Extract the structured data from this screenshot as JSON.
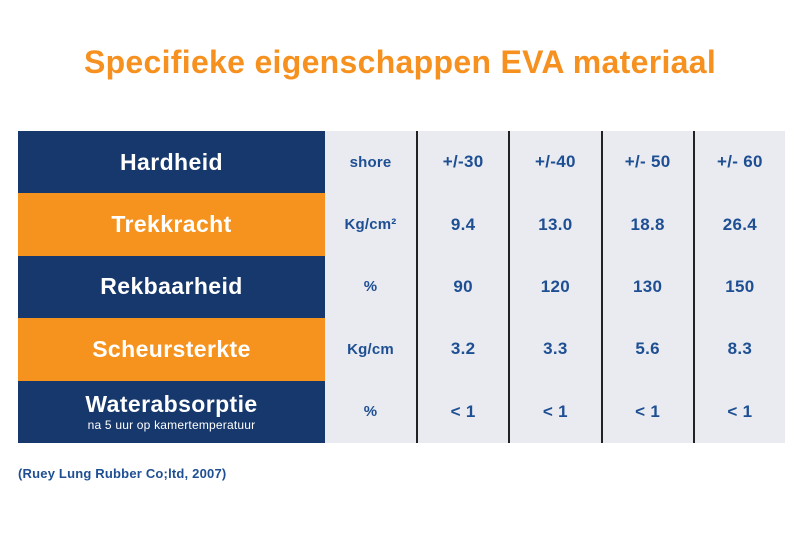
{
  "title": "Specifieke eigenschappen EVA materiaal",
  "source_citation": "(Ruey Lung Rubber Co;ltd, 2007)",
  "colors": {
    "navy": "#17386C",
    "orange": "#F6931F",
    "table_bg": "#E9EBF0",
    "text_blue": "#1E4F93",
    "line": "#222222",
    "title_orange": "#F6911F",
    "white_text": "#FFFFFF"
  },
  "table": {
    "rows": [
      {
        "label": "Hardheid",
        "sublabel": "",
        "label_bg": "navy",
        "unit": "shore",
        "values": [
          "+/-30",
          "+/-40",
          "+/- 50",
          "+/- 60"
        ]
      },
      {
        "label": "Trekkracht",
        "sublabel": "",
        "label_bg": "orange",
        "unit": "Kg/cm²",
        "values": [
          "9.4",
          "13.0",
          "18.8",
          "26.4"
        ]
      },
      {
        "label": "Rekbaarheid",
        "sublabel": "",
        "label_bg": "navy",
        "unit": "%",
        "values": [
          "90",
          "120",
          "130",
          "150"
        ]
      },
      {
        "label": "Scheursterkte",
        "sublabel": "",
        "label_bg": "orange",
        "unit": "Kg/cm",
        "values": [
          "3.2",
          "3.3",
          "5.6",
          "8.3"
        ]
      },
      {
        "label": "Waterabsorptie",
        "sublabel": "na 5 uur op kamertemperatuur",
        "label_bg": "navy",
        "unit": "%",
        "values": [
          "< 1",
          "< 1",
          "< 1",
          "< 1"
        ]
      }
    ]
  },
  "chart_data": {
    "type": "table",
    "title": "Specifieke eigenschappen EVA materiaal",
    "rows": [
      {
        "property": "Hardheid",
        "unit": "shore",
        "values": [
          "+/-30",
          "+/-40",
          "+/- 50",
          "+/- 60"
        ]
      },
      {
        "property": "Trekkracht",
        "unit": "Kg/cm²",
        "values": [
          9.4,
          13.0,
          18.8,
          26.4
        ]
      },
      {
        "property": "Rekbaarheid",
        "unit": "%",
        "values": [
          90,
          120,
          130,
          150
        ]
      },
      {
        "property": "Scheursterkte",
        "unit": "Kg/cm",
        "values": [
          3.2,
          3.3,
          5.6,
          8.3
        ]
      },
      {
        "property": "Waterabsorptie",
        "note": "na 5 uur op kamertemperatuur",
        "unit": "%",
        "values": [
          "< 1",
          "< 1",
          "< 1",
          "< 1"
        ]
      }
    ],
    "source": "(Ruey Lung Rubber Co;ltd, 2007)"
  }
}
